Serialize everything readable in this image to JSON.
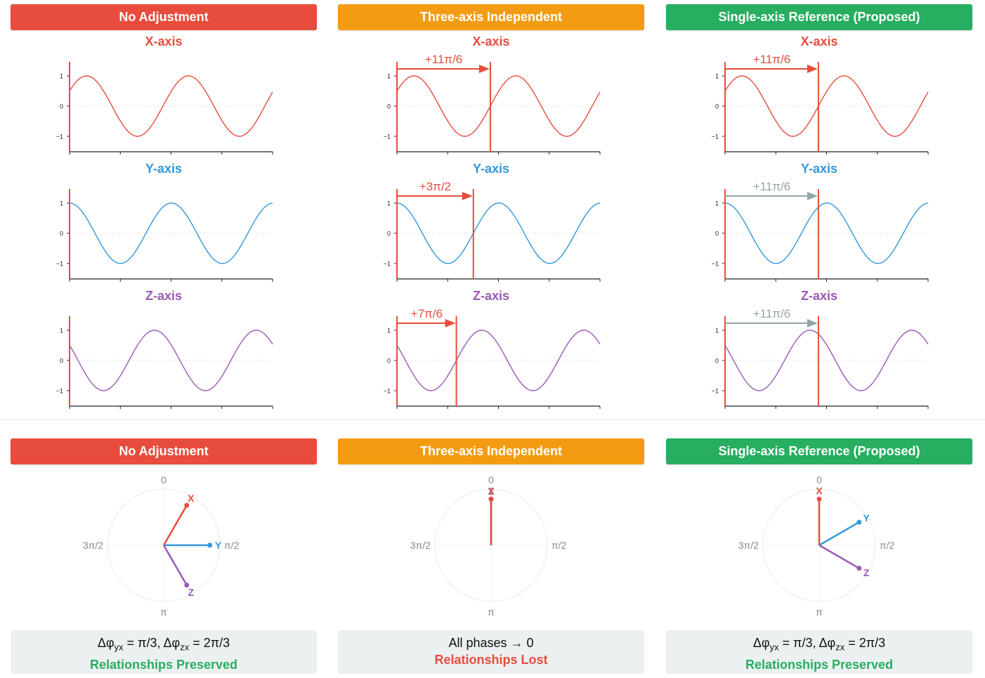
{
  "colors": {
    "red": "#e74c3c",
    "orange": "#f39c12",
    "green": "#27ae60",
    "x_axis": "#e74c3c",
    "y_axis": "#3498db",
    "z_axis": "#9b59b6",
    "gray": "#95a5a6"
  },
  "columns": [
    {
      "header": "No Adjustment",
      "header_color": "#e74c3c",
      "panels": [
        {
          "title": "X-axis",
          "phase_pi": 0.1667,
          "shift_label": "",
          "shift_pi": 0
        },
        {
          "title": "Y-axis",
          "phase_pi": 0.5,
          "shift_label": "",
          "shift_pi": 0
        },
        {
          "title": "Z-axis",
          "phase_pi": 0.8333,
          "shift_label": "",
          "shift_pi": 0
        }
      ],
      "polar": {
        "labels": {
          "top": "0",
          "right": "π/2",
          "bottom": "π",
          "left": "3π/2"
        },
        "vectors": [
          {
            "name": "X",
            "angle_pi": 0.1667
          },
          {
            "name": "Y",
            "angle_pi": 0.5
          },
          {
            "name": "Z",
            "angle_pi": 0.8333
          }
        ]
      },
      "note": {
        "formula": [
          "Δφ",
          "yx",
          " = π/3, Δφ",
          "zx",
          " = 2π/3"
        ],
        "status": "Relationships Preserved",
        "status_color": "#27ae60"
      }
    },
    {
      "header": "Three-axis Independent",
      "header_color": "#f39c12",
      "panels": [
        {
          "title": "X-axis",
          "phase_pi": 0.1667,
          "shift_label": "+11π/6",
          "shift_pi": 1.8333,
          "shift_color": "#e74c3c"
        },
        {
          "title": "Y-axis",
          "phase_pi": 0.5,
          "shift_label": "+3π/2",
          "shift_pi": 1.5,
          "shift_color": "#e74c3c"
        },
        {
          "title": "Z-axis",
          "phase_pi": 0.8333,
          "shift_label": "+7π/6",
          "shift_pi": 1.1667,
          "shift_color": "#e74c3c"
        }
      ],
      "polar": {
        "labels": {
          "top": "0",
          "right": "π/2",
          "bottom": "π",
          "left": "3π/2"
        },
        "vectors": [
          {
            "name": "X",
            "angle_pi": 0
          },
          {
            "name": "Y",
            "angle_pi": 0
          },
          {
            "name": "Z",
            "angle_pi": 0
          }
        ]
      },
      "note": {
        "formula": [
          "All phases → 0",
          "",
          "",
          "",
          ""
        ],
        "status": "Relationships Lost",
        "status_color": "#e74c3c"
      }
    },
    {
      "header": "Single-axis Reference (Proposed)",
      "header_color": "#27ae60",
      "panels": [
        {
          "title": "X-axis",
          "phase_pi": 0.1667,
          "shift_label": "+11π/6",
          "shift_pi": 1.8333,
          "shift_color": "#e74c3c"
        },
        {
          "title": "Y-axis",
          "phase_pi": 0.5,
          "shift_label": "+11π/6",
          "shift_pi": 1.8333,
          "shift_color": "#95a5a6"
        },
        {
          "title": "Z-axis",
          "phase_pi": 0.8333,
          "shift_label": "+11π/6",
          "shift_pi": 1.8333,
          "shift_color": "#95a5a6"
        }
      ],
      "polar": {
        "labels": {
          "top": "0",
          "right": "π/2",
          "bottom": "π",
          "left": "3π/2"
        },
        "vectors": [
          {
            "name": "X",
            "angle_pi": 0
          },
          {
            "name": "Y",
            "angle_pi": 0.3333
          },
          {
            "name": "Z",
            "angle_pi": 0.6667
          }
        ]
      },
      "note": {
        "formula": [
          "Δφ",
          "yx",
          " = π/3, Δφ",
          "zx",
          " = 2π/3"
        ],
        "status": "Relationships Preserved",
        "status_color": "#27ae60"
      }
    }
  ],
  "tick_labels": [
    "1",
    "0",
    "−1"
  ]
}
